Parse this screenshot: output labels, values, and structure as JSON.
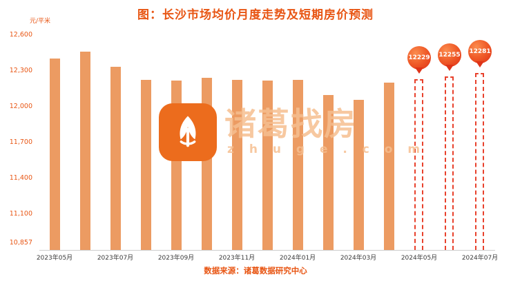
{
  "title": "图：长沙市场均价月度走势及短期房价预测",
  "y_unit": "元/平米",
  "source": "数据来源：诸葛数据研究中心",
  "watermark": {
    "brand": "诸葛找房",
    "domain": "z h u g e . c o m",
    "logo_icon": "zhuge-leaf-icon"
  },
  "colors": {
    "title": "#e85513",
    "bar": "#ec9b62",
    "axis_label": "#e85513",
    "x_label": "#3a3a3a",
    "forecast_border": "#e8402b",
    "balloon": "#ef5a28",
    "watermark_text": "#f6bf90",
    "logo_bg": "#ec6c1d"
  },
  "chart_data": {
    "type": "bar",
    "title": "图：长沙市场均价月度走势及短期房价预测",
    "ylabel": "元/平米",
    "xlabel": "",
    "grid": false,
    "legend": "none",
    "categories": [
      "2023年05月",
      "2023年06月",
      "2023年07月",
      "2023年08月",
      "2023年09月",
      "2023年10月",
      "2023年11月",
      "2023年12月",
      "2024年01月",
      "2024年02月",
      "2024年03月",
      "2024年04月",
      "2024年05月",
      "2024年06月",
      "2024年07月"
    ],
    "x_tick_labels": [
      "2023年05月",
      "2023年07月",
      "2023年09月",
      "2023年11月",
      "2024年01月",
      "2024年03月",
      "2024年05月",
      "2024年07月"
    ],
    "values": [
      12405,
      12460,
      12335,
      12225,
      12220,
      12240,
      12225,
      12220,
      12225,
      12100,
      12055,
      12200,
      12229,
      12255,
      12281
    ],
    "forecast": [
      false,
      false,
      false,
      false,
      false,
      false,
      false,
      false,
      false,
      false,
      false,
      false,
      true,
      true,
      true
    ],
    "forecast_labels": [
      "12229",
      "12255",
      "12281"
    ],
    "ylim": [
      10800,
      12600
    ],
    "y_ticks": [
      12600,
      12300,
      12000,
      11700,
      11400,
      11100,
      10857
    ],
    "y_tick_labels": [
      "12,600",
      "12,300",
      "12,000",
      "11,700",
      "11,400",
      "11,100",
      "10,857"
    ]
  }
}
